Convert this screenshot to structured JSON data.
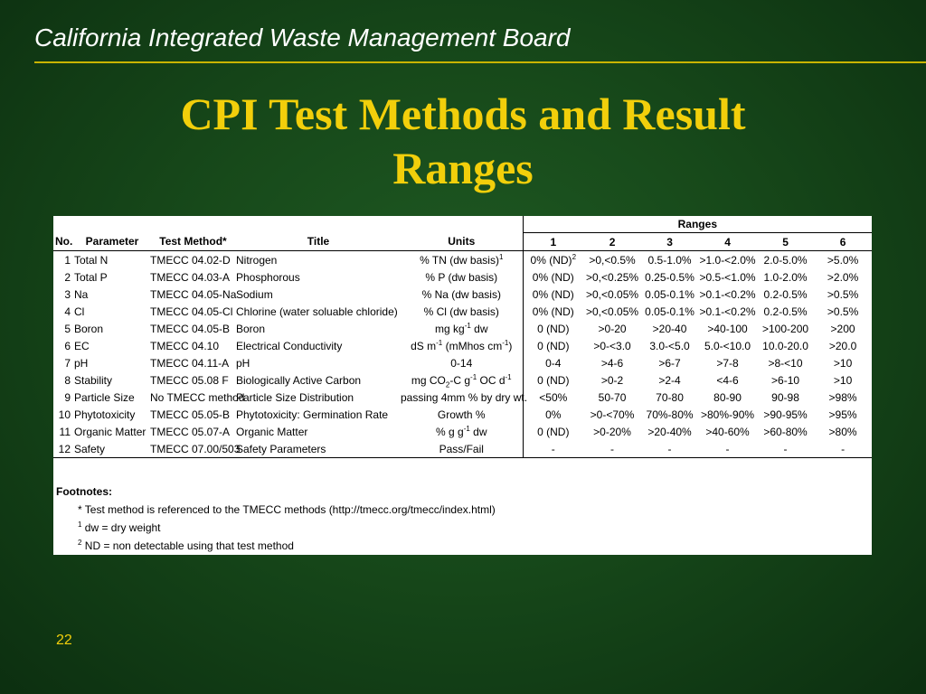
{
  "header": {
    "org": "California Integrated Waste Management Board"
  },
  "slide": {
    "title_line1": "CPI Test Methods and Result",
    "title_line2": "Ranges",
    "page_number": "22"
  },
  "table": {
    "ranges_label": "Ranges",
    "headers": {
      "no": "No.",
      "parameter": "Parameter",
      "method": "Test Method*",
      "title": "Title",
      "units": "Units"
    },
    "range_cols": [
      "1",
      "2",
      "3",
      "4",
      "5",
      "6"
    ],
    "rows": [
      {
        "no": "1",
        "parameter": "Total N",
        "method": "TMECC 04.02-D",
        "title": "Nitrogen",
        "units": "% TN (dw basis)",
        "units_sup": "1",
        "ranges": [
          "0% (ND)",
          ">0,<0.5%",
          "0.5-1.0%",
          ">1.0-<2.0%",
          "2.0-5.0%",
          ">5.0%"
        ],
        "r1_sup": "2"
      },
      {
        "no": "2",
        "parameter": "Total P",
        "method": "TMECC 04.03-A",
        "title": "Phosphorous",
        "units": "% P (dw basis)",
        "ranges": [
          "0% (ND)",
          ">0,<0.25%",
          "0.25-0.5%",
          ">0.5-<1.0%",
          "1.0-2.0%",
          ">2.0%"
        ]
      },
      {
        "no": "3",
        "parameter": "Na",
        "method": "TMECC 04.05-Na",
        "title": "Sodium",
        "units": "% Na (dw basis)",
        "ranges": [
          "0% (ND)",
          ">0,<0.05%",
          "0.05-0.1%",
          ">0.1-<0.2%",
          "0.2-0.5%",
          ">0.5%"
        ]
      },
      {
        "no": "4",
        "parameter": "Cl",
        "method": "TMECC 04.05-Cl",
        "title": "Chlorine (water soluable chloride)",
        "units": "% Cl (dw basis)",
        "ranges": [
          "0% (ND)",
          ">0,<0.05%",
          "0.05-0.1%",
          ">0.1-<0.2%",
          "0.2-0.5%",
          ">0.5%"
        ]
      },
      {
        "no": "5",
        "parameter": "Boron",
        "method": "TMECC 04.05-B",
        "title": "Boron",
        "units_a": "mg kg",
        "units_sup": "-1",
        "units_b": " dw",
        "ranges": [
          "0 (ND)",
          ">0-20",
          ">20-40",
          ">40-100",
          ">100-200",
          ">200"
        ]
      },
      {
        "no": "6",
        "parameter": "EC",
        "method": "TMECC 04.10",
        "title": "Electrical Conductivity",
        "units_a": "dS m",
        "units_sup": "-1",
        "units_b": " (mMhos cm",
        "units_sup2": "-1",
        "units_c": ")",
        "ranges": [
          "0 (ND)",
          ">0-<3.0",
          "3.0-<5.0",
          "5.0-<10.0",
          "10.0-20.0",
          ">20.0"
        ]
      },
      {
        "no": "7",
        "parameter": "pH",
        "method": "TMECC 04.11-A",
        "title": "pH",
        "units": "0-14",
        "ranges": [
          "0-4",
          ">4-6",
          ">6-7",
          ">7-8",
          ">8-<10",
          ">10"
        ]
      },
      {
        "no": "8",
        "parameter": "Stability",
        "method": "TMECC 05.08 F",
        "title": "Biologically Active Carbon",
        "units_a": "mg CO",
        "units_sub": "2",
        "units_b": "-C g",
        "units_sup": "-1",
        "units_c": " OC d",
        "units_sup2": "-1",
        "ranges": [
          "0 (ND)",
          ">0-2",
          ">2-4",
          "<4-6",
          ">6-10",
          ">10"
        ]
      },
      {
        "no": "9",
        "parameter": "Particle Size",
        "method": "No TMECC method",
        "title": "Particle Size Distribution",
        "units": "passing 4mm % by dry wt.",
        "ranges": [
          "<50%",
          "50-70",
          "70-80",
          "80-90",
          "90-98",
          ">98%"
        ]
      },
      {
        "no": "10",
        "parameter": "Phytotoxicity",
        "method": "TMECC 05.05-B",
        "title": "Phytotoxicity: Germination Rate",
        "units": "Growth %",
        "ranges": [
          "0%",
          ">0-<70%",
          "70%-80%",
          ">80%-90%",
          ">90-95%",
          ">95%"
        ]
      },
      {
        "no": "11",
        "parameter": "Organic Matter",
        "method": "TMECC 05.07-A",
        "title": "Organic Matter",
        "units_a": "% g g",
        "units_sup": "-1",
        "units_b": " dw",
        "ranges": [
          "0 (ND)",
          ">0-20%",
          ">20-40%",
          ">40-60%",
          ">60-80%",
          ">80%"
        ]
      },
      {
        "no": "12",
        "parameter": "Safety",
        "method": "TMECC 07.00/503",
        "title": "Safety Parameters",
        "units": "Pass/Fail",
        "ranges": [
          "-",
          "-",
          "-",
          "-",
          "-",
          "-"
        ]
      }
    ]
  },
  "footnotes": {
    "heading": "Footnotes:",
    "items": [
      {
        "mark": "",
        "text": "* Test method is referenced to the TMECC methods (http://tmecc.org/tmecc/index.html)"
      },
      {
        "mark": "1",
        "text": " dw = dry weight"
      },
      {
        "mark": "2",
        "text": " ND = non detectable using that test method"
      }
    ]
  },
  "colors": {
    "title": "#f2cf0b",
    "rule": "#c9b400",
    "background": "#17491a"
  }
}
